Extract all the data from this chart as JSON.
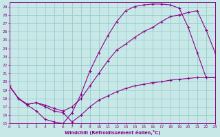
{
  "xlabel": "Windchill (Refroidissement éolien,°C)",
  "bg_color": "#c8e8e8",
  "line_color": "#880088",
  "grid_color": "#99cccc",
  "xlim": [
    0,
    23
  ],
  "ylim": [
    15,
    29.5
  ],
  "yticks": [
    15,
    16,
    17,
    18,
    19,
    20,
    21,
    22,
    23,
    24,
    25,
    26,
    27,
    28,
    29
  ],
  "xticks": [
    0,
    1,
    2,
    3,
    4,
    5,
    6,
    7,
    8,
    9,
    10,
    11,
    12,
    13,
    14,
    15,
    16,
    17,
    18,
    19,
    20,
    21,
    22,
    23
  ],
  "curve1_x": [
    0,
    1,
    2,
    3,
    4,
    5,
    6,
    7,
    8,
    9,
    10,
    11,
    12,
    13,
    14,
    15,
    16,
    17,
    18,
    19,
    20,
    21,
    22,
    23
  ],
  "curve1_y": [
    19.5,
    18.0,
    17.2,
    16.5,
    15.5,
    15.2,
    15.0,
    16.3,
    18.5,
    21.3,
    23.5,
    25.5,
    27.2,
    28.5,
    29.0,
    29.2,
    29.3,
    29.3,
    29.2,
    28.8,
    26.5,
    23.5,
    20.5,
    20.5
  ],
  "curve2_x": [
    0,
    1,
    2,
    3,
    4,
    5,
    6,
    7,
    8,
    9,
    10,
    11,
    12,
    13,
    14,
    15,
    16,
    17,
    18,
    19,
    20,
    21,
    22,
    23
  ],
  "curve2_y": [
    19.5,
    18.0,
    17.3,
    17.5,
    17.2,
    16.8,
    16.5,
    17.0,
    18.0,
    19.5,
    21.0,
    22.5,
    23.8,
    24.5,
    25.3,
    26.0,
    26.5,
    27.2,
    27.8,
    28.0,
    28.3,
    28.5,
    26.2,
    23.5
  ],
  "curve3_x": [
    0,
    1,
    2,
    3,
    4,
    5,
    6,
    7,
    8,
    9,
    10,
    11,
    12,
    13,
    14,
    15,
    16,
    17,
    18,
    19,
    20,
    21,
    22,
    23
  ],
  "curve3_y": [
    19.5,
    18.0,
    17.3,
    17.5,
    17.0,
    16.5,
    16.3,
    15.2,
    16.0,
    17.0,
    17.8,
    18.3,
    18.8,
    19.2,
    19.5,
    19.7,
    19.9,
    20.0,
    20.2,
    20.3,
    20.4,
    20.5,
    20.5,
    20.5
  ]
}
